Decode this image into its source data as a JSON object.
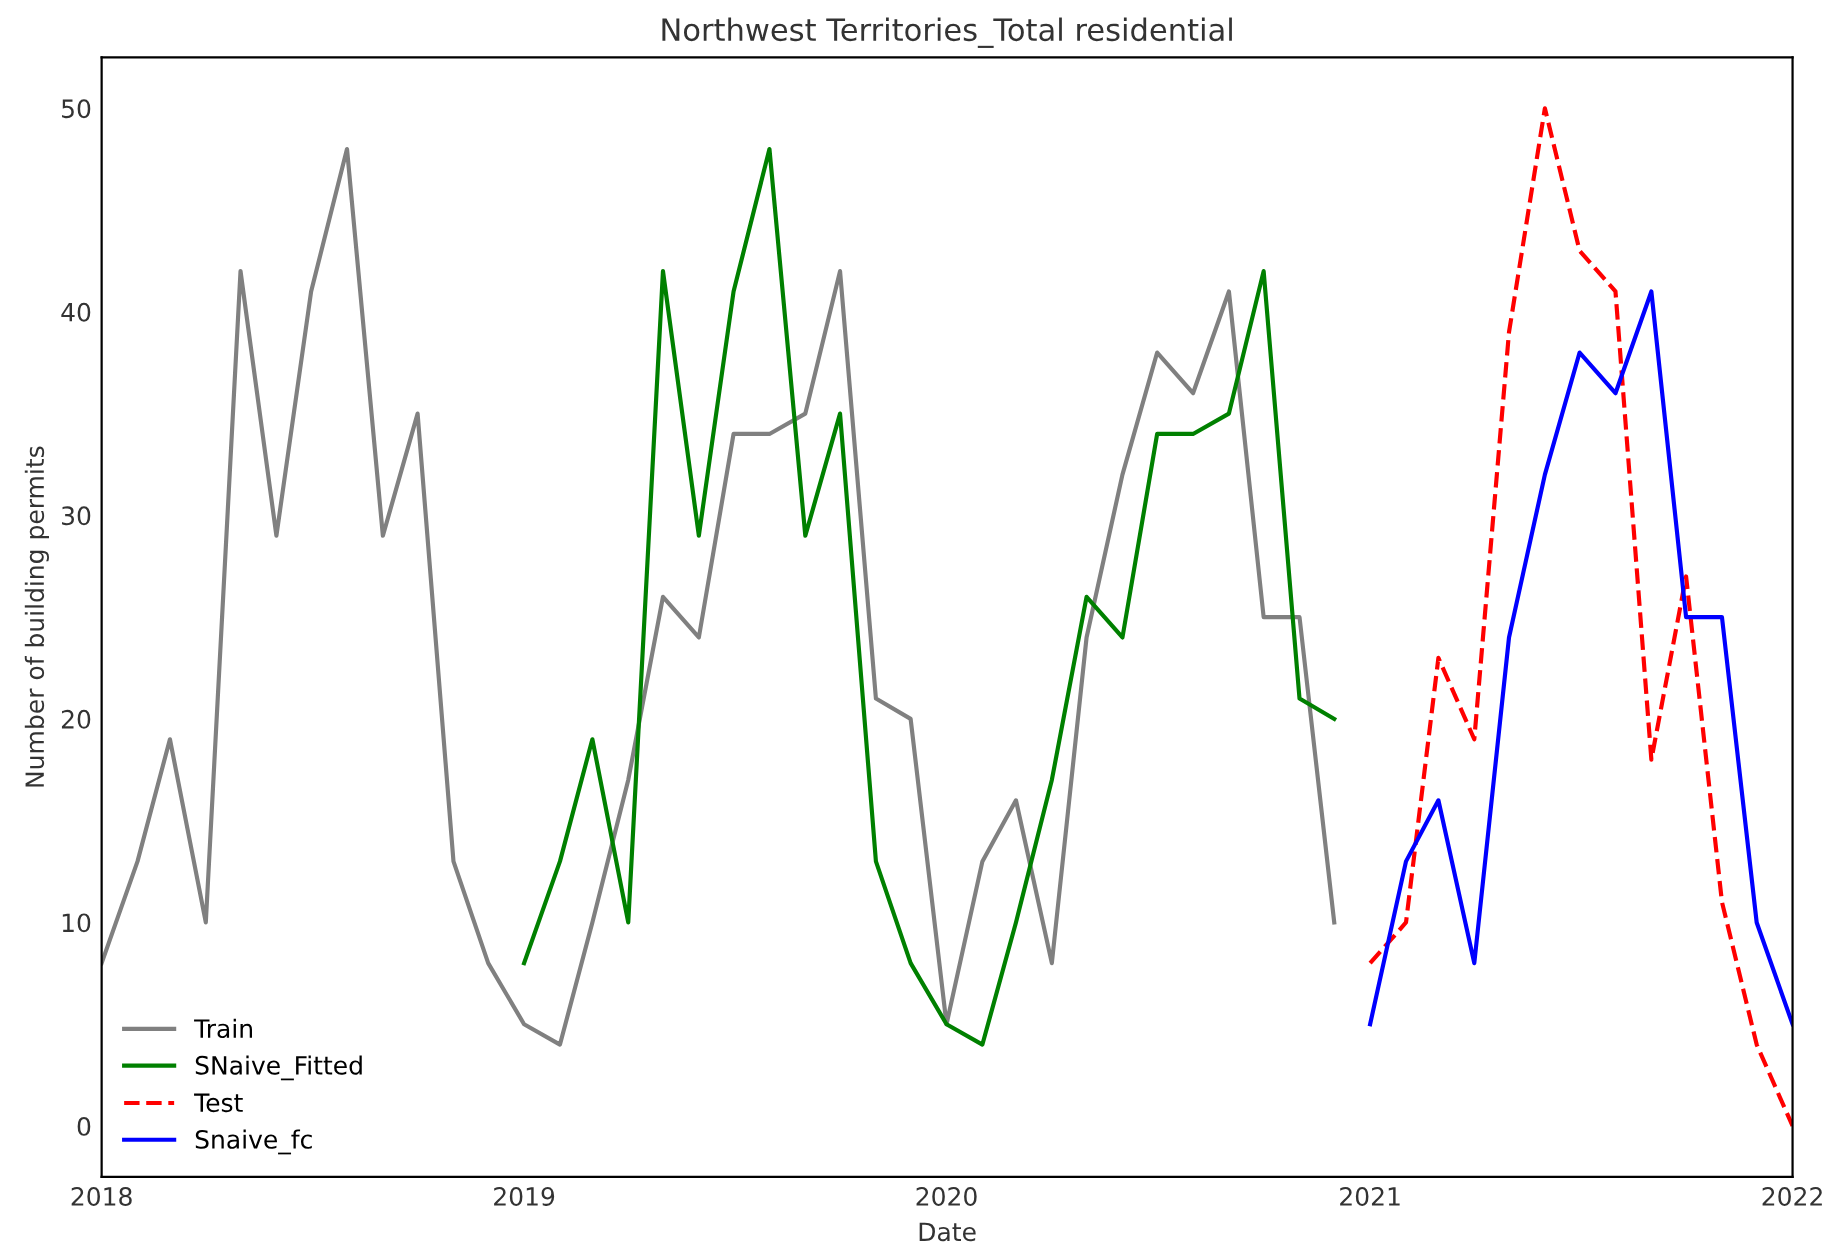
{
  "chart_data": {
    "type": "line",
    "title": "Northwest Territories_Total residential",
    "xlabel": "Date",
    "ylabel": "Number of building permits",
    "xlim": [
      "2018-01",
      "2022-01"
    ],
    "xticks": [
      {
        "value": "2018-01",
        "label": "2018"
      },
      {
        "value": "2019-01",
        "label": "2019"
      },
      {
        "value": "2020-01",
        "label": "2020"
      },
      {
        "value": "2021-01",
        "label": "2021"
      },
      {
        "value": "2022-01",
        "label": "2022"
      }
    ],
    "ylim": [
      -2.5,
      52.5
    ],
    "yticks": [
      0,
      10,
      20,
      30,
      40,
      50
    ],
    "grid": false,
    "legend": "bottom left",
    "series": [
      {
        "name": "Train",
        "color": "#808080",
        "line_style": "solid",
        "x": [
          "2018-01",
          "2018-02",
          "2018-03",
          "2018-04",
          "2018-05",
          "2018-06",
          "2018-07",
          "2018-08",
          "2018-09",
          "2018-10",
          "2018-11",
          "2018-12",
          "2019-01",
          "2019-02",
          "2019-03",
          "2019-04",
          "2019-05",
          "2019-06",
          "2019-07",
          "2019-08",
          "2019-09",
          "2019-10",
          "2019-11",
          "2019-12",
          "2020-01",
          "2020-02",
          "2020-03",
          "2020-04",
          "2020-05",
          "2020-06",
          "2020-07",
          "2020-08",
          "2020-09",
          "2020-10",
          "2020-11",
          "2020-12"
        ],
        "values": [
          8,
          13,
          19,
          10,
          42,
          29,
          41,
          48,
          29,
          35,
          13,
          8,
          5,
          4,
          10,
          17,
          26,
          24,
          34,
          34,
          35,
          42,
          21,
          20,
          5,
          13,
          16,
          8,
          24,
          32,
          38,
          36,
          41,
          25,
          25,
          10
        ]
      },
      {
        "name": "SNaive_Fitted",
        "color": "#008000",
        "line_style": "solid",
        "x": [
          "2019-01",
          "2019-02",
          "2019-03",
          "2019-04",
          "2019-05",
          "2019-06",
          "2019-07",
          "2019-08",
          "2019-09",
          "2019-10",
          "2019-11",
          "2019-12",
          "2020-01",
          "2020-02",
          "2020-03",
          "2020-04",
          "2020-05",
          "2020-06",
          "2020-07",
          "2020-08",
          "2020-09",
          "2020-10",
          "2020-11",
          "2020-12"
        ],
        "values": [
          8,
          13,
          19,
          10,
          42,
          29,
          41,
          48,
          29,
          35,
          13,
          8,
          5,
          4,
          10,
          17,
          26,
          24,
          34,
          34,
          35,
          42,
          21,
          20
        ]
      },
      {
        "name": "Test",
        "color": "#ff0000",
        "line_style": "dashed",
        "x": [
          "2021-01",
          "2021-02",
          "2021-03",
          "2021-04",
          "2021-05",
          "2021-06",
          "2021-07",
          "2021-08",
          "2021-09",
          "2021-10",
          "2021-11",
          "2021-12",
          "2022-01"
        ],
        "values": [
          8,
          10,
          23,
          19,
          39,
          50,
          43,
          41,
          18,
          27,
          11,
          4,
          0
        ]
      },
      {
        "name": "Snaive_fc",
        "color": "#0000ff",
        "line_style": "solid",
        "x": [
          "2021-01",
          "2021-02",
          "2021-03",
          "2021-04",
          "2021-05",
          "2021-06",
          "2021-07",
          "2021-08",
          "2021-09",
          "2021-10",
          "2021-11",
          "2021-12",
          "2022-01"
        ],
        "values": [
          5,
          13,
          16,
          8,
          24,
          32,
          38,
          36,
          41,
          25,
          25,
          10,
          5
        ]
      }
    ]
  }
}
